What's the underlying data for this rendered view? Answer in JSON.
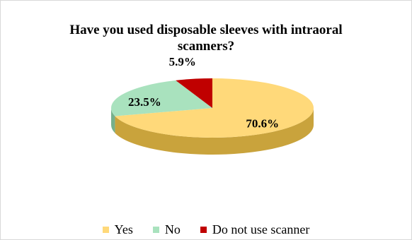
{
  "chart_data": {
    "type": "pie",
    "title": "Have you used disposable sleeves with intraoral scanners?",
    "title_lines": [
      "Have you used disposable sleeves with intraoral",
      "scanners?"
    ],
    "style": "3d",
    "legend_position": "bottom",
    "slices": [
      {
        "label": "Yes",
        "value": 70.6,
        "data_label": "70.6%",
        "color": "#FFD97A",
        "side_color": "#C9A33C"
      },
      {
        "label": "No",
        "value": 23.5,
        "data_label": "23.5%",
        "color": "#A9E2BE",
        "side_color": "#76B08C"
      },
      {
        "label": "Do not use scanner",
        "value": 5.9,
        "data_label": "5.9%",
        "color": "#C00000",
        "side_color": "#8A0000"
      }
    ]
  }
}
